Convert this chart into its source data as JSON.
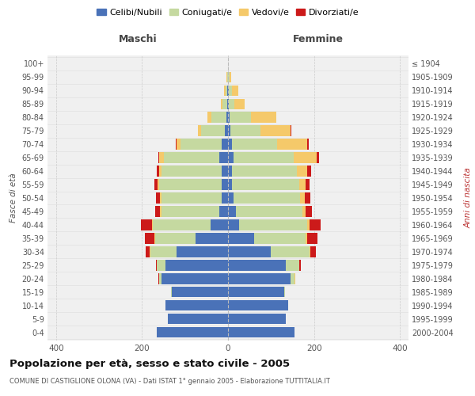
{
  "age_groups": [
    "0-4",
    "5-9",
    "10-14",
    "15-19",
    "20-24",
    "25-29",
    "30-34",
    "35-39",
    "40-44",
    "45-49",
    "50-54",
    "55-59",
    "60-64",
    "65-69",
    "70-74",
    "75-79",
    "80-84",
    "85-89",
    "90-94",
    "95-99",
    "100+"
  ],
  "birth_years": [
    "2000-2004",
    "1995-1999",
    "1990-1994",
    "1985-1989",
    "1980-1984",
    "1975-1979",
    "1970-1974",
    "1965-1969",
    "1960-1964",
    "1955-1959",
    "1950-1954",
    "1945-1949",
    "1940-1944",
    "1935-1939",
    "1930-1934",
    "1925-1929",
    "1920-1924",
    "1915-1919",
    "1910-1914",
    "1905-1909",
    "≤ 1904"
  ],
  "maschi": {
    "celibi": [
      165,
      140,
      145,
      130,
      155,
      145,
      120,
      75,
      40,
      20,
      15,
      15,
      15,
      20,
      15,
      7,
      3,
      2,
      1,
      0,
      0
    ],
    "coniugati": [
      0,
      0,
      0,
      2,
      5,
      20,
      60,
      95,
      135,
      135,
      140,
      145,
      140,
      130,
      95,
      55,
      35,
      10,
      5,
      2,
      0
    ],
    "vedovi": [
      0,
      0,
      0,
      1,
      1,
      1,
      2,
      2,
      2,
      3,
      3,
      4,
      6,
      10,
      10,
      8,
      10,
      5,
      3,
      1,
      0
    ],
    "divorziati": [
      0,
      0,
      0,
      0,
      1,
      2,
      10,
      22,
      25,
      12,
      10,
      8,
      5,
      2,
      2,
      0,
      0,
      0,
      0,
      0,
      0
    ]
  },
  "femmine": {
    "nubili": [
      155,
      135,
      140,
      130,
      145,
      135,
      100,
      60,
      25,
      18,
      12,
      10,
      10,
      12,
      10,
      5,
      3,
      2,
      1,
      0,
      0
    ],
    "coniugate": [
      0,
      0,
      0,
      3,
      10,
      30,
      90,
      120,
      160,
      155,
      155,
      155,
      150,
      140,
      105,
      70,
      50,
      12,
      8,
      3,
      0
    ],
    "vedove": [
      0,
      0,
      0,
      0,
      1,
      1,
      2,
      4,
      5,
      8,
      12,
      15,
      25,
      55,
      70,
      70,
      60,
      25,
      15,
      5,
      0
    ],
    "divorziate": [
      0,
      0,
      0,
      0,
      1,
      3,
      12,
      25,
      25,
      15,
      12,
      10,
      8,
      5,
      2,
      2,
      0,
      0,
      0,
      0,
      0
    ]
  },
  "colors": {
    "celibi_nubili": "#4a72b8",
    "coniugati": "#c5d9a0",
    "vedovi": "#f5c96a",
    "divorziati": "#cc1a1a"
  },
  "title": "Popolazione per età, sesso e stato civile - 2005",
  "subtitle": "COMUNE DI CASTIGLIONE OLONA (VA) - Dati ISTAT 1° gennaio 2005 - Elaborazione TUTTITALIA.IT",
  "ylabel_left": "Fasce di età",
  "ylabel_right": "Anni di nascita",
  "xlabel_maschi": "Maschi",
  "xlabel_femmine": "Femmine",
  "xlim": 420,
  "bg_color": "#ffffff",
  "plot_bg": "#f0f0f0",
  "legend_labels": [
    "Celibi/Nubili",
    "Coniugati/e",
    "Vedovi/e",
    "Divorziati/e"
  ]
}
